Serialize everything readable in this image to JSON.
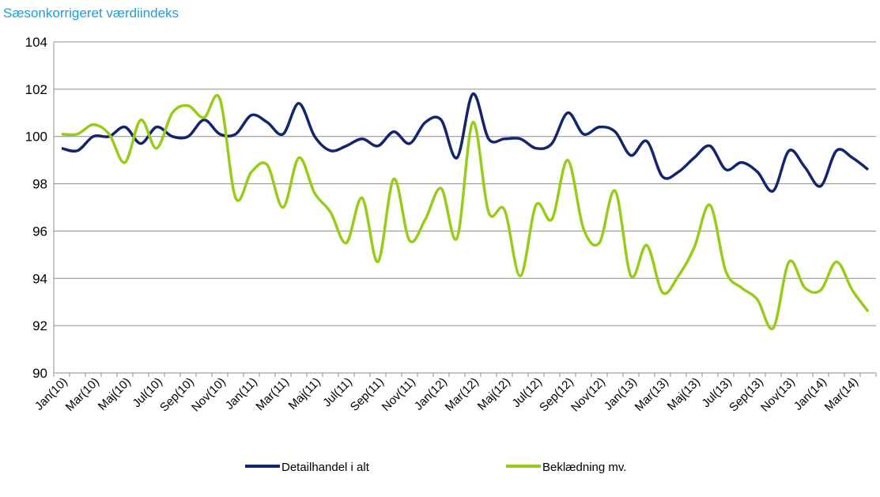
{
  "chart_data": {
    "type": "line",
    "title": "Sæsonkorrigeret værdiindeks",
    "categories": [
      "Jan(10)",
      null,
      "Mar(10)",
      null,
      "Maj(10)",
      null,
      "Jul(10)",
      null,
      "Sep(10)",
      null,
      "Nov(10)",
      null,
      "Jan(11)",
      null,
      "Mar(11)",
      null,
      "Maj(11)",
      null,
      "Jul(11)",
      null,
      "Sep(11)",
      null,
      "Nov(11)",
      null,
      "Jan(12)",
      null,
      "Mar(12)",
      null,
      "Maj(12)",
      null,
      "Jul(12)",
      null,
      "Sep(12)",
      null,
      "Nov(12)",
      null,
      "Jan(13)",
      null,
      "Mar(13)",
      null,
      "Maj(13)",
      null,
      "Jul(13)",
      null,
      "Sep(13)",
      null,
      "Nov(13)",
      null,
      "Jan(14)",
      null,
      "Mar(14)",
      null
    ],
    "series": [
      {
        "name": "Detailhandel i alt",
        "color": "#13266b",
        "values": [
          99.5,
          99.4,
          100.0,
          100.0,
          100.4,
          99.7,
          100.4,
          100.0,
          100.0,
          100.7,
          100.1,
          100.1,
          100.9,
          100.6,
          100.1,
          101.4,
          100.0,
          99.4,
          99.6,
          99.9,
          99.6,
          100.2,
          99.7,
          100.6,
          100.7,
          99.1,
          101.8,
          99.9,
          99.9,
          99.9,
          99.5,
          99.7,
          101.0,
          100.1,
          100.4,
          100.2,
          99.2,
          99.8,
          98.3,
          98.5,
          99.1,
          99.6,
          98.6,
          98.9,
          98.5,
          97.7,
          99.4,
          98.7,
          97.9,
          99.4,
          99.1,
          98.6
        ]
      },
      {
        "name": "Beklædning mv.",
        "color": "#99cc1a",
        "values": [
          100.1,
          100.1,
          100.5,
          100.1,
          98.9,
          100.7,
          99.5,
          101.0,
          101.3,
          100.8,
          101.6,
          97.4,
          98.5,
          98.8,
          97.0,
          99.1,
          97.6,
          96.8,
          95.5,
          97.4,
          94.7,
          98.2,
          95.6,
          96.5,
          97.8,
          95.7,
          100.6,
          96.8,
          96.9,
          94.1,
          97.1,
          96.5,
          99.0,
          96.1,
          95.5,
          97.7,
          94.1,
          95.4,
          93.4,
          94.1,
          95.3,
          97.1,
          94.3,
          93.6,
          93.1,
          91.9,
          94.7,
          93.6,
          93.5,
          94.7,
          93.5,
          92.6
        ]
      }
    ],
    "ylim": [
      90,
      104
    ],
    "yticks": [
      90,
      92,
      94,
      96,
      98,
      100,
      102,
      104
    ],
    "grid": true,
    "legend": "bottom"
  }
}
